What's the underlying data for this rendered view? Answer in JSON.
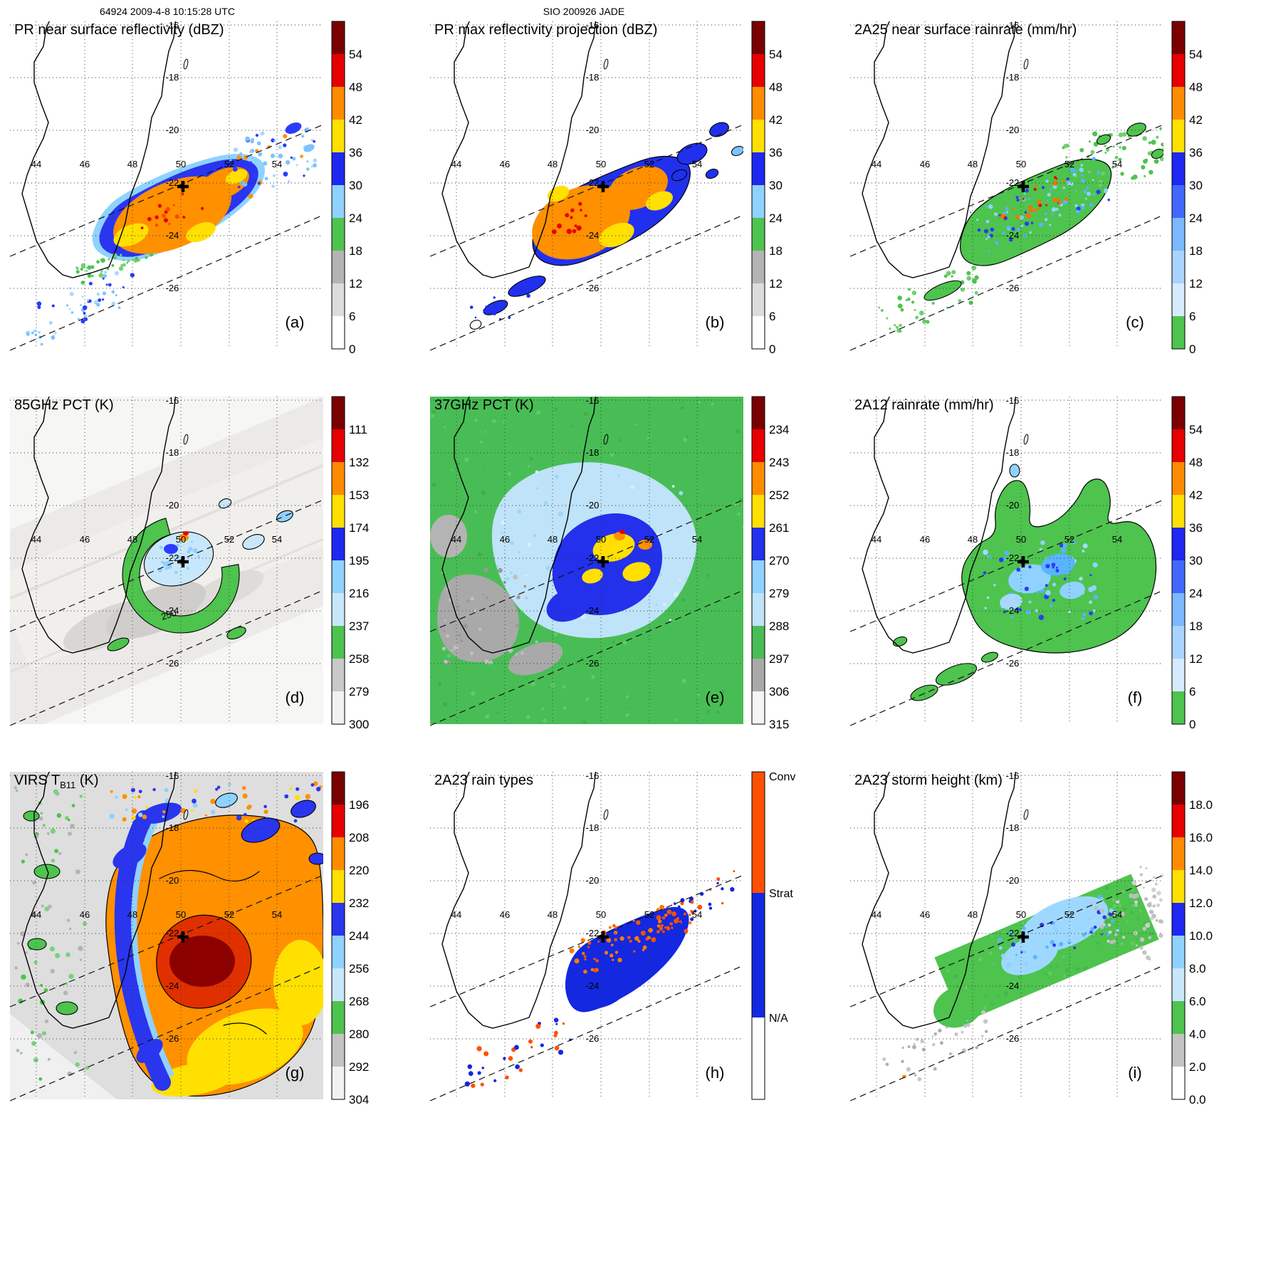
{
  "header": {
    "left": "64924 2009-4-8 10:15:28 UTC",
    "center": "SIO 200926 JADE"
  },
  "map": {
    "lon_labels": [
      "44",
      "46",
      "48",
      "50",
      "52",
      "54"
    ],
    "lat_labels": [
      "-16",
      "-18",
      "-20",
      "-22",
      "-24",
      "-26"
    ],
    "contour_label": "250"
  },
  "panels": [
    {
      "id": "a",
      "letter": "(a)",
      "title": "PR near surface reflectivity (dBZ)",
      "colorbar": "dbz"
    },
    {
      "id": "b",
      "letter": "(b)",
      "title": "PR max reflectivity projection (dBZ)",
      "colorbar": "dbz"
    },
    {
      "id": "c",
      "letter": "(c)",
      "title": "2A25 near surface rainrate (mm/hr)",
      "colorbar": "rain"
    },
    {
      "id": "d",
      "letter": "(d)",
      "title": "85GHz PCT (K)",
      "colorbar": "pct85"
    },
    {
      "id": "e",
      "letter": "(e)",
      "title": "37GHz PCT (K)",
      "colorbar": "pct37"
    },
    {
      "id": "f",
      "letter": "(f)",
      "title": "2A12 rainrate (mm/hr)",
      "colorbar": "rain"
    },
    {
      "id": "g",
      "letter": "(g)",
      "title_main": "VIRS T",
      "title_sub": "B11",
      "title_tail": " (K)",
      "colorbar": "ir"
    },
    {
      "id": "h",
      "letter": "(h)",
      "title": "2A23 rain types",
      "colorbar": "raintype"
    },
    {
      "id": "i",
      "letter": "(i)",
      "title": "2A23 storm height (km)",
      "colorbar": "height"
    }
  ],
  "colorbars": {
    "dbz": {
      "unit": "dBZ",
      "ticks": [
        "54",
        "48",
        "42",
        "36",
        "30",
        "24",
        "18",
        "12",
        "6",
        "0"
      ],
      "colors_top_to_bottom": [
        "#7a0000",
        "#e60000",
        "#ff8c00",
        "#ffe000",
        "#1e28f0",
        "#8fd2ff",
        "#4ec34e",
        "#b4b4b4",
        "#dcdcdc",
        "#ffffff"
      ]
    },
    "rain": {
      "unit": "mm/hr",
      "ticks": [
        "54",
        "48",
        "42",
        "36",
        "30",
        "24",
        "18",
        "12",
        "6",
        "0"
      ],
      "colors_top_to_bottom": [
        "#7a0000",
        "#e60000",
        "#ff8c00",
        "#ffe000",
        "#1e28f0",
        "#4169ff",
        "#7cb8ff",
        "#a8d4ff",
        "#d6ebff",
        "#4ec34e"
      ]
    },
    "pct85": {
      "unit": "K",
      "ticks": [
        "111",
        "132",
        "153",
        "174",
        "195",
        "216",
        "237",
        "258",
        "279",
        "300"
      ],
      "colors_top_to_bottom": [
        "#7a0000",
        "#e60000",
        "#ff8c00",
        "#ffe000",
        "#1e28f0",
        "#8fd2ff",
        "#c9e7fb",
        "#4ec34e",
        "#c9c9c9",
        "#f2f2f2"
      ]
    },
    "pct37": {
      "unit": "K",
      "ticks": [
        "234",
        "243",
        "252",
        "261",
        "270",
        "279",
        "288",
        "297",
        "306",
        "315"
      ],
      "colors_top_to_bottom": [
        "#7a0000",
        "#e60000",
        "#ff8c00",
        "#ffe000",
        "#2330ec",
        "#8fd2ff",
        "#bfe3f9",
        "#49bd55",
        "#a9a9a9",
        "#f5f5f5"
      ]
    },
    "ir": {
      "unit": "K",
      "ticks": [
        "196",
        "208",
        "220",
        "232",
        "244",
        "256",
        "268",
        "280",
        "292",
        "304"
      ],
      "colors_top_to_bottom": [
        "#7a0000",
        "#e60000",
        "#ff8c00",
        "#ffe000",
        "#2a35ee",
        "#8fd2ff",
        "#c9e7fb",
        "#4ec34e",
        "#c3c3c3",
        "#f2f2f2"
      ]
    },
    "height": {
      "unit": "km",
      "ticks": [
        "18.0",
        "16.0",
        "14.0",
        "12.0",
        "10.0",
        "8.0",
        "6.0",
        "4.0",
        "2.0",
        "0.0"
      ],
      "colors_top_to_bottom": [
        "#7a0000",
        "#e60000",
        "#ff8c00",
        "#ffe000",
        "#1e28f0",
        "#8fd2ff",
        "#c9e7fb",
        "#4ec34e",
        "#c3c3c3",
        "#ffffff"
      ]
    },
    "raintype": {
      "labels": [
        "Conv",
        "Strat",
        "N/A"
      ],
      "colors_top_to_bottom": [
        "#ff5000",
        "#1328e0",
        "#ffffff"
      ]
    }
  },
  "chart_data": {
    "type": "heatmap",
    "figure": "3x3 grid of satellite overpass maps of a tropical cyclone east of Madagascar",
    "header_left": "64924 2009-4-8 10:15:28 UTC",
    "header_center": "SIO 200926 JADE",
    "geo_extent": {
      "lon": [
        43,
        56
      ],
      "lat": [
        -27,
        -15.5
      ]
    },
    "lon_gridlines": [
      44,
      46,
      48,
      50,
      52,
      54
    ],
    "lat_gridlines": [
      -16,
      -18,
      -20,
      -22,
      -24,
      -26
    ],
    "storm_center_marker": {
      "lon": 50.1,
      "lat": -22.1
    },
    "grid": "dotted graticule, dashed swath-edge lines, Madagascar coastline drawn in black",
    "panels": [
      {
        "label": "(a)",
        "title": "PR near surface reflectivity (dBZ)",
        "units": "dBZ",
        "scale_ticks": [
          54,
          48,
          42,
          36,
          30,
          24,
          18,
          12,
          6,
          0
        ]
      },
      {
        "label": "(b)",
        "title": "PR max reflectivity projection (dBZ)",
        "units": "dBZ",
        "scale_ticks": [
          54,
          48,
          42,
          36,
          30,
          24,
          18,
          12,
          6,
          0
        ]
      },
      {
        "label": "(c)",
        "title": "2A25 near surface rainrate (mm/hr)",
        "units": "mm/hr",
        "scale_ticks": [
          54,
          48,
          42,
          36,
          30,
          24,
          18,
          12,
          6,
          0
        ]
      },
      {
        "label": "(d)",
        "title": "85GHz PCT (K)",
        "units": "K",
        "scale_ticks": [
          111,
          132,
          153,
          174,
          195,
          216,
          237,
          258,
          279,
          300
        ],
        "contour_label": 250
      },
      {
        "label": "(e)",
        "title": "37GHz PCT (K)",
        "units": "K",
        "scale_ticks": [
          234,
          243,
          252,
          261,
          270,
          279,
          288,
          297,
          306,
          315
        ]
      },
      {
        "label": "(f)",
        "title": "2A12 rainrate (mm/hr)",
        "units": "mm/hr",
        "scale_ticks": [
          54,
          48,
          42,
          36,
          30,
          24,
          18,
          12,
          6,
          0
        ]
      },
      {
        "label": "(g)",
        "title": "VIRS TB11 (K)",
        "units": "K",
        "scale_ticks": [
          196,
          208,
          220,
          232,
          244,
          256,
          268,
          280,
          292,
          304
        ]
      },
      {
        "label": "(h)",
        "title": "2A23 rain types",
        "categories": [
          "Conv",
          "Strat",
          "N/A"
        ]
      },
      {
        "label": "(i)",
        "title": "2A23 storm height (km)",
        "units": "km",
        "scale_ticks": [
          18.0,
          16.0,
          14.0,
          12.0,
          10.0,
          8.0,
          6.0,
          4.0,
          2.0,
          0.0
        ]
      }
    ]
  }
}
